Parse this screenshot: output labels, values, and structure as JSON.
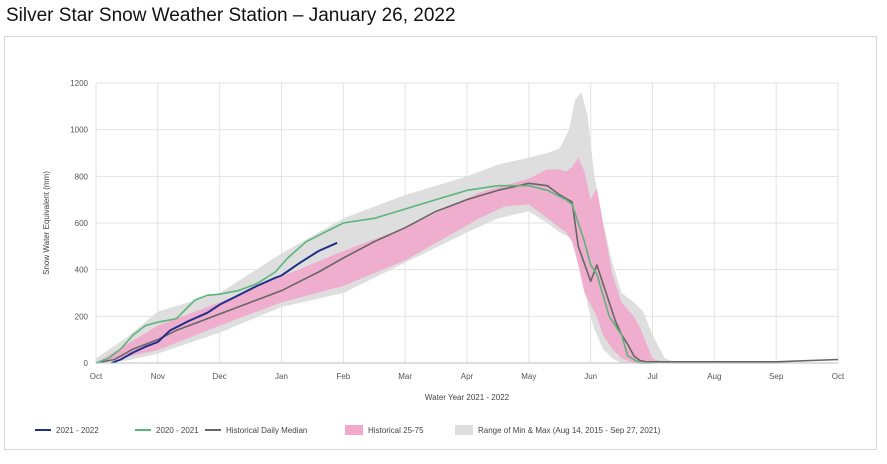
{
  "page": {
    "title": "Silver Star Snow Weather Station – January 26, 2022"
  },
  "colors": {
    "current": "#1f2f8a",
    "prior": "#5bb57a",
    "median": "#666666",
    "band_25_75": "#f2a8cc",
    "band_minmax": "#dedede",
    "grid": "#e3e3e3"
  },
  "chart_data": {
    "type": "line",
    "title": "",
    "xlabel": "Water Year 2021 - 2022",
    "ylabel": "Snow Water Equivalent (mm)",
    "ylim": [
      0,
      1200
    ],
    "yticks": [
      0,
      200,
      400,
      600,
      800,
      1000,
      1200
    ],
    "xticks": [
      "Oct",
      "Nov",
      "Dec",
      "Jan",
      "Feb",
      "Mar",
      "Apr",
      "May",
      "Jun",
      "Jul",
      "Aug",
      "Sep",
      "Oct"
    ],
    "xlim_months": [
      0,
      12
    ],
    "grid": true,
    "legend_position": "bottom",
    "series": [
      {
        "name": "2021 - 2022",
        "x": [
          0.25,
          0.4,
          0.6,
          0.8,
          1.0,
          1.2,
          1.5,
          1.8,
          2.0,
          2.3,
          2.6,
          2.9,
          3.0,
          3.3,
          3.6,
          3.9
        ],
        "y": [
          0,
          15,
          45,
          70,
          90,
          140,
          180,
          215,
          250,
          290,
          330,
          365,
          375,
          430,
          480,
          515
        ]
      },
      {
        "name": "2020 - 2021",
        "x": [
          0.0,
          0.2,
          0.4,
          0.6,
          0.8,
          1.0,
          1.3,
          1.6,
          1.8,
          2.0,
          2.3,
          2.6,
          2.9,
          3.1,
          3.4,
          3.7,
          4.0,
          4.5,
          5.0,
          5.5,
          6.0,
          6.5,
          7.0,
          7.3,
          7.6,
          7.7,
          7.9,
          8.0,
          8.1,
          8.3,
          8.5,
          8.6,
          8.8,
          9.0
        ],
        "y": [
          0,
          20,
          60,
          120,
          160,
          175,
          190,
          270,
          290,
          295,
          310,
          340,
          390,
          450,
          520,
          560,
          600,
          620,
          660,
          700,
          740,
          760,
          760,
          740,
          700,
          680,
          520,
          420,
          380,
          200,
          120,
          30,
          0,
          0
        ]
      },
      {
        "name": "Historical Daily Median",
        "x": [
          0.0,
          0.3,
          0.6,
          1.0,
          1.3,
          1.6,
          2.0,
          2.3,
          2.6,
          3.0,
          3.3,
          3.6,
          4.0,
          4.5,
          5.0,
          5.5,
          6.0,
          6.5,
          7.0,
          7.3,
          7.5,
          7.7,
          7.8,
          8.0,
          8.1,
          8.25,
          8.4,
          8.5,
          8.6,
          8.7,
          8.8,
          8.9,
          9.0,
          9.5,
          10.0,
          11.0,
          12.0
        ],
        "y": [
          0,
          15,
          60,
          100,
          140,
          170,
          210,
          240,
          270,
          310,
          350,
          390,
          450,
          520,
          580,
          650,
          700,
          740,
          770,
          760,
          720,
          690,
          500,
          350,
          420,
          300,
          180,
          120,
          80,
          30,
          10,
          5,
          5,
          5,
          5,
          5,
          15
        ]
      }
    ],
    "bands": [
      {
        "name": "Historical 25-75",
        "x": [
          0.0,
          1.0,
          2.0,
          3.0,
          4.0,
          5.0,
          5.8,
          6.2,
          6.6,
          7.0,
          7.3,
          7.5,
          7.6,
          7.7,
          7.8,
          7.9,
          8.0,
          8.1,
          8.2,
          8.35,
          8.5,
          8.7,
          8.8,
          9.0,
          9.2
        ],
        "lower": [
          0,
          55,
          160,
          260,
          330,
          440,
          560,
          620,
          670,
          680,
          620,
          580,
          560,
          520,
          420,
          300,
          250,
          200,
          120,
          60,
          20,
          0,
          0,
          0,
          0
        ],
        "upper": [
          0,
          160,
          260,
          370,
          480,
          580,
          680,
          730,
          760,
          790,
          830,
          830,
          820,
          840,
          880,
          820,
          700,
          750,
          600,
          380,
          260,
          200,
          150,
          20,
          0
        ]
      },
      {
        "name": "Range of Min & Max (Aug 14, 2015 - Sep 27, 2021)",
        "x": [
          0.0,
          0.5,
          1.0,
          2.0,
          3.0,
          4.0,
          5.0,
          6.0,
          6.5,
          7.0,
          7.3,
          7.5,
          7.65,
          7.75,
          7.85,
          7.95,
          8.05,
          8.2,
          8.35,
          8.5,
          8.7,
          8.85,
          9.0,
          9.2,
          9.4
        ],
        "lower": [
          0,
          10,
          40,
          130,
          240,
          300,
          430,
          560,
          620,
          650,
          600,
          560,
          540,
          500,
          400,
          250,
          150,
          60,
          20,
          0,
          0,
          0,
          0,
          0,
          0
        ],
        "upper": [
          20,
          110,
          220,
          300,
          470,
          620,
          720,
          800,
          850,
          880,
          900,
          920,
          1000,
          1130,
          1160,
          1060,
          820,
          600,
          430,
          300,
          260,
          220,
          120,
          20,
          0
        ]
      }
    ]
  },
  "legend": {
    "items": [
      {
        "label": "2021 - 2022",
        "kind": "line",
        "color": "#1f2f8a"
      },
      {
        "label": "2020 - 2021",
        "kind": "line",
        "color": "#5bb57a"
      },
      {
        "label": "Historical Daily Median",
        "kind": "line",
        "color": "#666666"
      },
      {
        "label": "Historical 25-75",
        "kind": "band",
        "color": "#f2a8cc"
      },
      {
        "label": "Range of Min & Max (Aug 14, 2015 - Sep 27, 2021)",
        "kind": "band",
        "color": "#dedede"
      }
    ]
  }
}
